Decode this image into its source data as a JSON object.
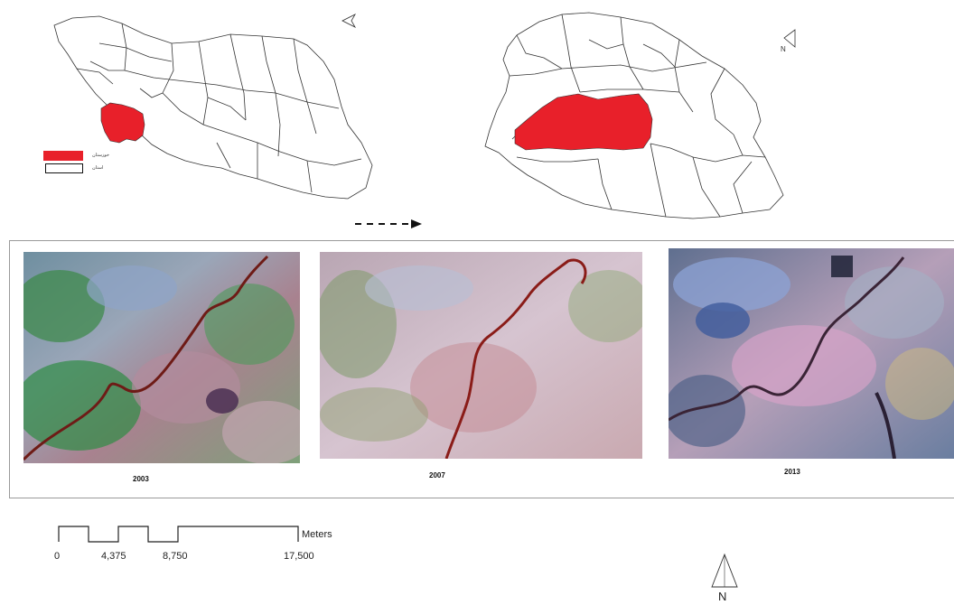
{
  "maps": {
    "country": {
      "legend": [
        {
          "label": "خوزستان",
          "color": "#e8202a"
        },
        {
          "label": "استان",
          "color": "#ffffff"
        }
      ]
    },
    "province": {
      "highlight_color": "#e8202a"
    }
  },
  "panels": [
    {
      "year": "2003"
    },
    {
      "year": "2007"
    },
    {
      "year": "2013"
    }
  ],
  "scale_bar": {
    "unit": "Meters",
    "ticks": [
      "0",
      "4,375",
      "8,750",
      "17,500"
    ]
  },
  "north_arrows": [
    "N",
    "N",
    "N"
  ],
  "colors": {
    "highlight": "#e8202a",
    "river": "#7a1a18",
    "frame": "#9a9a9a"
  }
}
